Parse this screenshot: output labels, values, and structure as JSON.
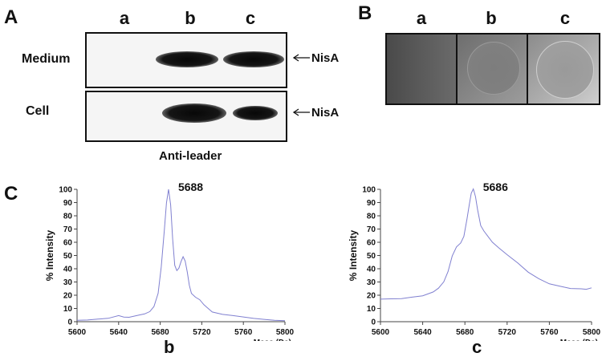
{
  "panel_a": {
    "letter": "A",
    "lanes": [
      "a",
      "b",
      "c"
    ],
    "rows": [
      {
        "label": "Medium",
        "band_label": "NisA"
      },
      {
        "label": "Cell",
        "band_label": "NisA"
      }
    ],
    "caption": "Anti-leader"
  },
  "panel_b": {
    "letter": "B",
    "lanes": [
      "a",
      "b",
      "c"
    ]
  },
  "panel_c": {
    "letter": "C",
    "sublabels": [
      "b",
      "c"
    ]
  },
  "chart_data": [
    {
      "type": "line",
      "peak_label": "5688",
      "xlabel": "Mass (Da)",
      "ylabel": "% Intensity",
      "xlim": [
        5600,
        5800
      ],
      "ylim": [
        0,
        100
      ],
      "xticks": [
        5600,
        5640,
        5680,
        5720,
        5760,
        5800
      ],
      "yticks": [
        0,
        10,
        20,
        30,
        40,
        50,
        60,
        70,
        80,
        90,
        100
      ],
      "series": [
        {
          "color": "#8080d0",
          "x": [
            5600,
            5610,
            5620,
            5630,
            5640,
            5645,
            5650,
            5660,
            5665,
            5670,
            5674,
            5678,
            5681,
            5684,
            5686,
            5688,
            5690,
            5692,
            5694,
            5696,
            5698,
            5700,
            5702,
            5704,
            5706,
            5708,
            5710,
            5714,
            5718,
            5722,
            5726,
            5730,
            5740,
            5750,
            5760,
            5770,
            5780,
            5790,
            5800
          ],
          "y": [
            1,
            1,
            1.5,
            2,
            4,
            3,
            3,
            5,
            6,
            8,
            12,
            22,
            42,
            70,
            90,
            100,
            88,
            62,
            42,
            38,
            40,
            45,
            49,
            46,
            38,
            28,
            22,
            19,
            17,
            13,
            10,
            7,
            5,
            4,
            3,
            2,
            1.5,
            1,
            1
          ]
        }
      ]
    },
    {
      "type": "line",
      "peak_label": "5686",
      "xlabel": "Mass (Da)",
      "ylabel": "% Intensity",
      "xlim": [
        5600,
        5800
      ],
      "ylim": [
        0,
        100
      ],
      "xticks": [
        5600,
        5640,
        5680,
        5720,
        5760,
        5800
      ],
      "yticks": [
        0,
        10,
        20,
        30,
        40,
        50,
        60,
        70,
        80,
        90,
        100
      ],
      "series": [
        {
          "color": "#8080d0",
          "x": [
            5600,
            5610,
            5620,
            5630,
            5640,
            5650,
            5655,
            5660,
            5664,
            5668,
            5672,
            5676,
            5679,
            5682,
            5684,
            5686,
            5688,
            5690,
            5692,
            5695,
            5698,
            5702,
            5706,
            5712,
            5720,
            5730,
            5740,
            5750,
            5760,
            5770,
            5780,
            5790,
            5795,
            5800
          ],
          "y": [
            17,
            17,
            17,
            18,
            19,
            22,
            25,
            30,
            38,
            50,
            57,
            60,
            65,
            78,
            88,
            97,
            100,
            94,
            84,
            72,
            68,
            64,
            60,
            56,
            51,
            45,
            38,
            33,
            29,
            27,
            25,
            24.5,
            24,
            25
          ]
        }
      ]
    }
  ]
}
